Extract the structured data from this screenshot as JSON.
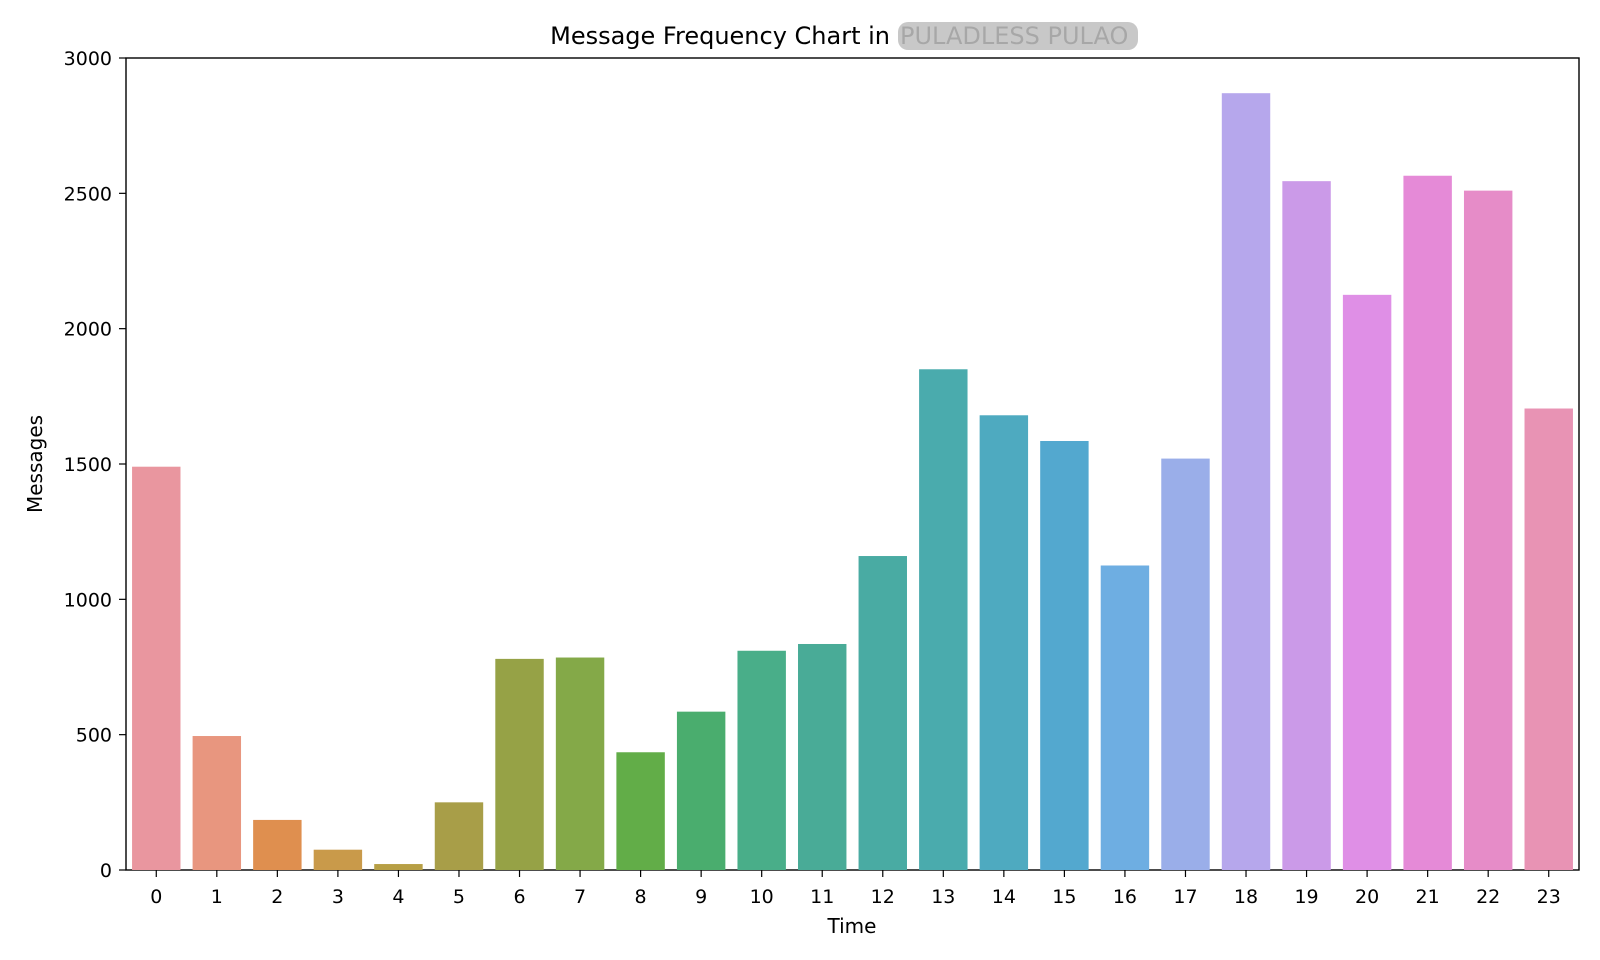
{
  "chart_data": {
    "type": "bar",
    "title": "Message Frequency Chart in",
    "title_redacted": "PULADLESS PULAO",
    "xlabel": "Time",
    "ylabel": "Messages",
    "ylim": [
      0,
      3000
    ],
    "yticks": [
      0,
      500,
      1000,
      1500,
      2000,
      2500,
      3000
    ],
    "grid": false,
    "legend": "none",
    "categories": [
      "0",
      "1",
      "2",
      "3",
      "4",
      "5",
      "6",
      "7",
      "8",
      "9",
      "10",
      "11",
      "12",
      "13",
      "14",
      "15",
      "16",
      "17",
      "18",
      "19",
      "20",
      "21",
      "22",
      "23"
    ],
    "values": [
      1490,
      495,
      185,
      75,
      22,
      250,
      780,
      785,
      435,
      585,
      810,
      835,
      1160,
      1850,
      1680,
      1585,
      1125,
      1520,
      2870,
      2545,
      2125,
      2565,
      2510,
      1705
    ],
    "colors": [
      "#e9969f",
      "#e8967f",
      "#df8f4f",
      "#c99a4a",
      "#b79f45",
      "#a89e48",
      "#96a246",
      "#84a948",
      "#62ad48",
      "#4aad6e",
      "#49ae89",
      "#49ab97",
      "#49aba3",
      "#4aabad",
      "#4eaac0",
      "#53a8cf",
      "#6eaee2",
      "#9aaee9",
      "#b6a7ec",
      "#cb9ae8",
      "#df8fe6",
      "#e58ad7",
      "#e68cc8",
      "#e893b4"
    ]
  }
}
